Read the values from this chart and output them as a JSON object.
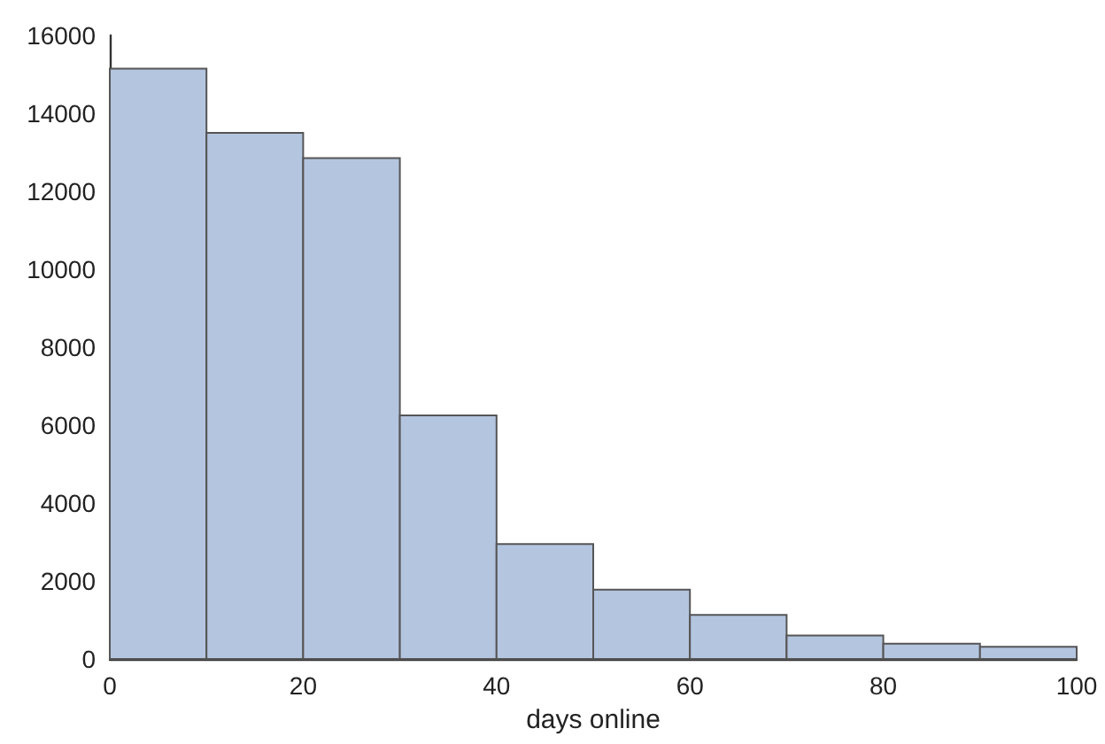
{
  "chart_data": {
    "type": "histogram",
    "xlabel": "days online",
    "bins": [
      0,
      10,
      20,
      30,
      40,
      50,
      60,
      70,
      80,
      90,
      100
    ],
    "values": [
      15150,
      13500,
      12850,
      6250,
      2950,
      1780,
      1130,
      600,
      390,
      310
    ],
    "color": "#b4c5df",
    "xlim": [
      0,
      100
    ],
    "xticks": [
      0,
      20,
      40,
      60,
      80,
      100
    ],
    "ylim": [
      0,
      16000
    ],
    "yticks": [
      0,
      2000,
      4000,
      6000,
      8000,
      10000,
      12000,
      14000,
      16000
    ]
  }
}
